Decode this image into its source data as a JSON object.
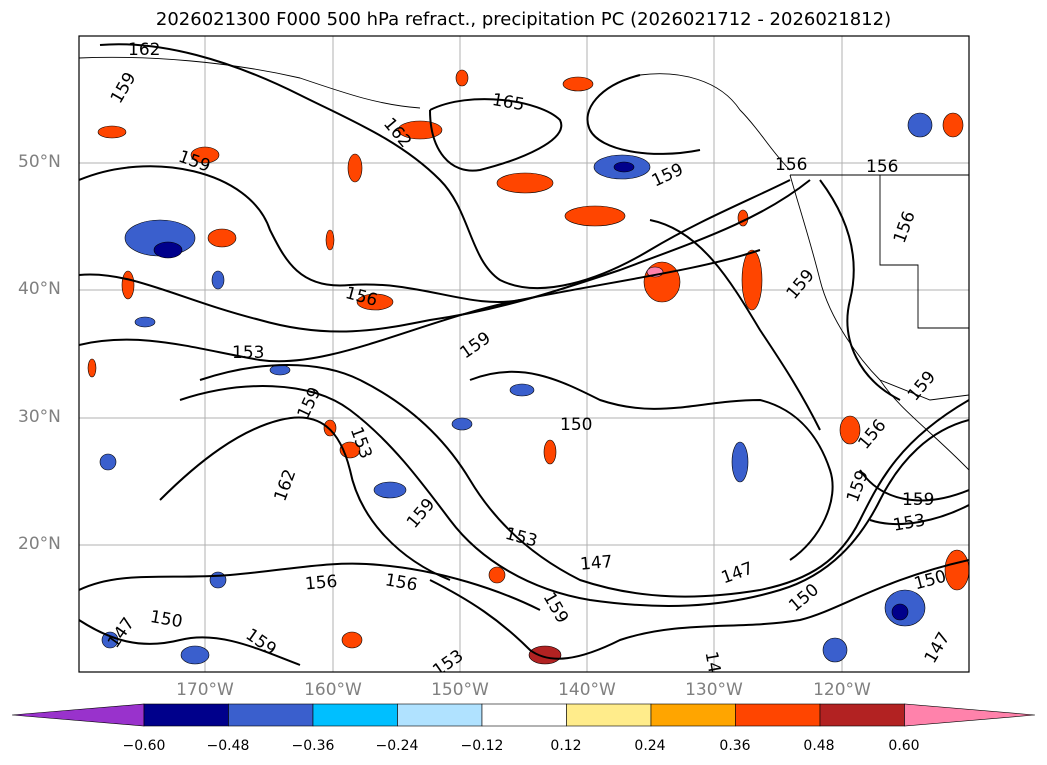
{
  "title": "2026021300 F000 500 hPa refract., precipitation PC (2026021712 - 2026021812)",
  "map": {
    "lat_labels": [
      "50°N",
      "40°N",
      "30°N",
      "20°N"
    ],
    "lon_labels": [
      "170°W",
      "160°W",
      "150°W",
      "140°W",
      "130°W",
      "120°W"
    ],
    "contour_labels": [
      "162",
      "159",
      "165",
      "162",
      "159",
      "159",
      "156",
      "156",
      "156",
      "156",
      "159",
      "153",
      "159",
      "159",
      "150",
      "153",
      "162",
      "159",
      "153",
      "147",
      "147",
      "150",
      "156",
      "156",
      "159",
      "159",
      "150",
      "147",
      "153",
      "153",
      "159",
      "159",
      "156",
      "159",
      "147",
      "150",
      "14"
    ]
  },
  "colorbar": {
    "ticks": [
      "−0.60",
      "−0.48",
      "−0.36",
      "−0.24",
      "−0.12",
      "0.12",
      "0.24",
      "0.36",
      "0.48",
      "0.60"
    ],
    "colors": [
      "#9932CC",
      "#00008B",
      "#3A5FCD",
      "#00BFFF",
      "#B0E2FF",
      "#FFFFFF",
      "#FFEC8B",
      "#FFA500",
      "#FF4500",
      "#B22222",
      "#FF82AB"
    ]
  }
}
